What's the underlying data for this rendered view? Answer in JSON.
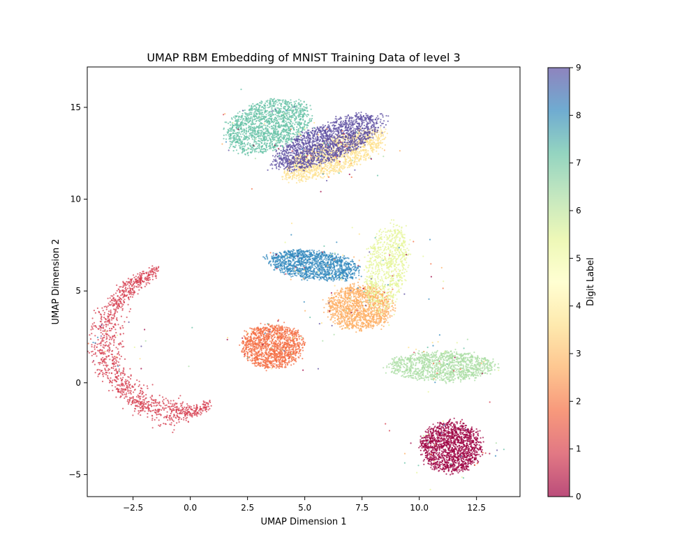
{
  "chart_data": {
    "type": "scatter",
    "title": "UMAP RBM Embedding of MNIST Training Data of level 3",
    "xlabel": "UMAP Dimension 1",
    "ylabel": "UMAP Dimension 2",
    "xlim": [
      -4.5,
      14.4
    ],
    "ylim": [
      -6.2,
      17.2
    ],
    "xticks": [
      -2.5,
      0.0,
      2.5,
      5.0,
      7.5,
      10.0,
      12.5
    ],
    "yticks": [
      -5,
      0,
      5,
      10,
      15
    ],
    "grid": false,
    "colorbar": {
      "label": "Digit Label",
      "range": [
        0,
        9
      ],
      "ticks": [
        0,
        1,
        2,
        3,
        4,
        5,
        6,
        7,
        8,
        9
      ],
      "colormap": "Spectral",
      "colors": [
        "#9e0142",
        "#d53e4f",
        "#f46d43",
        "#fdae61",
        "#fee08b",
        "#ffffbf",
        "#e6f598",
        "#abdda4",
        "#66c2a5",
        "#3288bd",
        "#5e4fa2"
      ]
    },
    "clusters": [
      {
        "label": 0,
        "color": "#9e0142",
        "shape": "ellipse",
        "center": [
          11.4,
          -3.5
        ],
        "spread": [
          1.3,
          1.35
        ],
        "count": 1500
      },
      {
        "label": 1,
        "color": "#d53e4f",
        "shape": "arc",
        "center": [
          -0.6,
          2.3
        ],
        "radius": [
          3.1,
          3.9
        ],
        "angle_range_deg": [
          105,
          298
        ],
        "thickness": 0.55,
        "count": 1300
      },
      {
        "label": 2,
        "color": "#f46d43",
        "shape": "ellipse",
        "center": [
          3.6,
          2.0
        ],
        "spread": [
          1.3,
          1.2
        ],
        "count": 1300
      },
      {
        "label": 3,
        "color": "#fdae61",
        "shape": "ellipse",
        "center": [
          7.4,
          4.1
        ],
        "spread": [
          1.4,
          1.2
        ],
        "count": 1300
      },
      {
        "label": 4,
        "color": "#fee08b",
        "shape": "ellipse",
        "center": [
          6.3,
          12.4
        ],
        "spread": [
          2.4,
          0.9
        ],
        "rotation_deg": 28,
        "count": 1300
      },
      {
        "label": 5,
        "color": "#e6f598",
        "shape": "ellipse",
        "center": [
          8.6,
          6.3
        ],
        "spread": [
          0.9,
          2.3
        ],
        "rotation_deg": -8,
        "count": 800
      },
      {
        "label": 6,
        "color": "#abdda4",
        "shape": "ellipse",
        "center": [
          11.0,
          0.9
        ],
        "spread": [
          2.3,
          0.8
        ],
        "count": 1200
      },
      {
        "label": 7,
        "color": "#66c2a5",
        "shape": "ellipse",
        "center": [
          3.4,
          14.0
        ],
        "spread": [
          1.9,
          1.3
        ],
        "rotation_deg": 28,
        "count": 1500
      },
      {
        "label": 8,
        "color": "#3288bd",
        "shape": "ellipse",
        "center": [
          5.4,
          6.4
        ],
        "spread": [
          2.0,
          0.75
        ],
        "rotation_deg": -10,
        "count": 1300
      },
      {
        "label": 9,
        "color": "#5e4fa2",
        "shape": "ellipse",
        "center": [
          6.0,
          13.1
        ],
        "spread": [
          2.6,
          0.95
        ],
        "rotation_deg": 28,
        "count": 1700
      }
    ]
  }
}
